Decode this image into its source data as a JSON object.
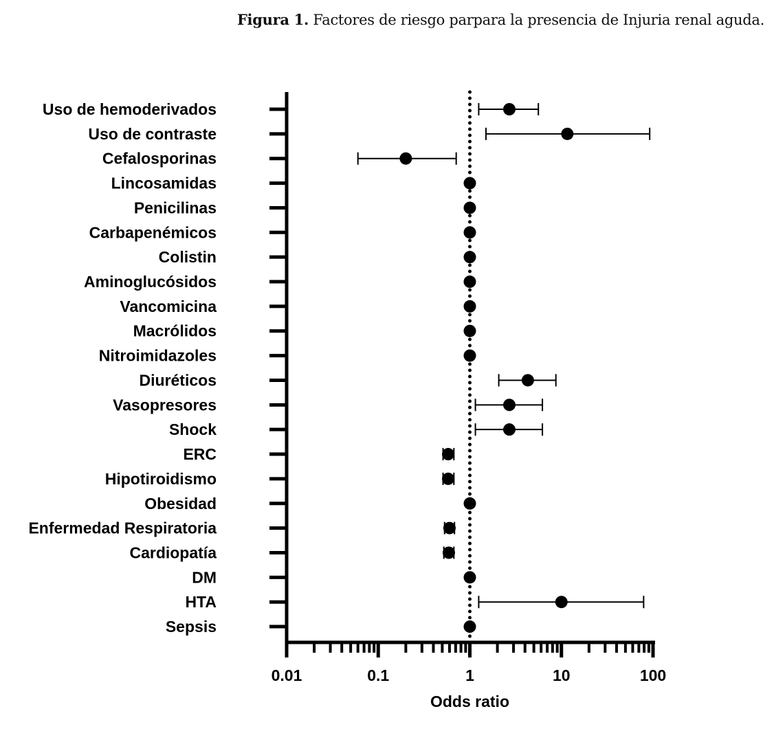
{
  "chart_data": {
    "type": "scatter",
    "subtype": "forest-plot",
    "title_prefix": "Figura 1.",
    "title": "Factores de riesgo parpara la presencia de  Injuria renal aguda.",
    "xlabel": "Odds ratio",
    "xscale": "log",
    "xlim": [
      0.01,
      100
    ],
    "xticks": [
      "0.01",
      "0.1",
      "1",
      "10",
      "100"
    ],
    "reference_line": 1,
    "rows": [
      {
        "label": "Uso de hemoderivados",
        "or": 2.7,
        "lo": 1.25,
        "hi": 5.6
      },
      {
        "label": "Uso de contraste",
        "or": 11.6,
        "lo": 1.5,
        "hi": 92
      },
      {
        "label": "Cefalosporinas",
        "or": 0.2,
        "lo": 0.06,
        "hi": 0.71
      },
      {
        "label": "Lincosamidas",
        "or": 1,
        "lo": 1,
        "hi": 1
      },
      {
        "label": "Penicilinas",
        "or": 1,
        "lo": 1,
        "hi": 1
      },
      {
        "label": "Carbapenémicos",
        "or": 1,
        "lo": 1,
        "hi": 1
      },
      {
        "label": "Colistin",
        "or": 1,
        "lo": 1,
        "hi": 1
      },
      {
        "label": "Aminoglucósidos",
        "or": 1,
        "lo": 1,
        "hi": 1
      },
      {
        "label": "Vancomicina",
        "or": 1,
        "lo": 1,
        "hi": 1
      },
      {
        "label": "Macrólidos",
        "or": 1,
        "lo": 1,
        "hi": 1
      },
      {
        "label": "Nitroimidazoles",
        "or": 1,
        "lo": 1,
        "hi": 1
      },
      {
        "label": "Diuréticos",
        "or": 4.3,
        "lo": 2.07,
        "hi": 8.7
      },
      {
        "label": "Vasopresores",
        "or": 2.7,
        "lo": 1.15,
        "hi": 6.2
      },
      {
        "label": "Shock",
        "or": 2.7,
        "lo": 1.15,
        "hi": 6.2
      },
      {
        "label": "ERC",
        "or": 0.58,
        "lo": 0.51,
        "hi": 0.67
      },
      {
        "label": "Hipotiroidismo",
        "or": 0.58,
        "lo": 0.51,
        "hi": 0.67
      },
      {
        "label": "Obesidad",
        "or": 1,
        "lo": 1,
        "hi": 1
      },
      {
        "label": "Enfermedad Respiratoria",
        "or": 0.6,
        "lo": 0.53,
        "hi": 0.68
      },
      {
        "label": "Cardiopatía",
        "or": 0.59,
        "lo": 0.52,
        "hi": 0.67
      },
      {
        "label": "DM",
        "or": 1,
        "lo": 1,
        "hi": 1
      },
      {
        "label": "HTA",
        "or": 10,
        "lo": 1.25,
        "hi": 79
      },
      {
        "label": "Sepsis",
        "or": 1,
        "lo": 1,
        "hi": 1
      }
    ],
    "colors": {
      "marker": "#000000",
      "axis": "#000000"
    }
  }
}
